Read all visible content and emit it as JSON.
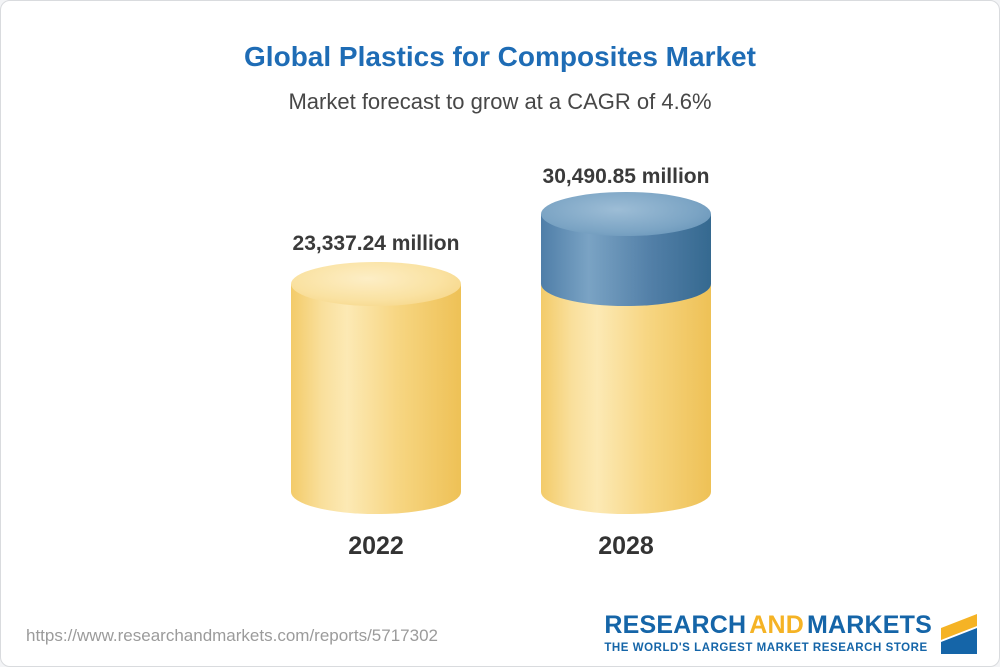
{
  "header": {
    "title": "Global Plastics for Composites Market",
    "subtitle": "Market forecast to grow at a CAGR of 4.6%"
  },
  "chart_data": {
    "type": "bar",
    "variant": "3d-cylinder",
    "title": "Global Plastics for Composites Market",
    "subtitle": "Market forecast to grow at a CAGR of 4.6%",
    "categories": [
      "2022",
      "2028"
    ],
    "values": [
      23337.24,
      30490.85
    ],
    "value_labels": [
      "23,337.24 million",
      "30,490.85 million"
    ],
    "cagr": "4.6%",
    "legend": "none",
    "grid": false,
    "colors": {
      "base_segment": "#f6d27c",
      "growth_segment": "#4f7ea8",
      "title_text": "#1e6cb5",
      "label_text": "#3a3a3a"
    }
  },
  "footer": {
    "url": "https://www.researchandmarkets.com/reports/5717302",
    "logo": {
      "part1": "RESEARCH",
      "part2": "AND",
      "part3": "MARKETS",
      "tagline": "THE WORLD'S LARGEST MARKET RESEARCH STORE",
      "brand_blue": "#1565a8",
      "brand_yellow": "#f5b325"
    }
  }
}
